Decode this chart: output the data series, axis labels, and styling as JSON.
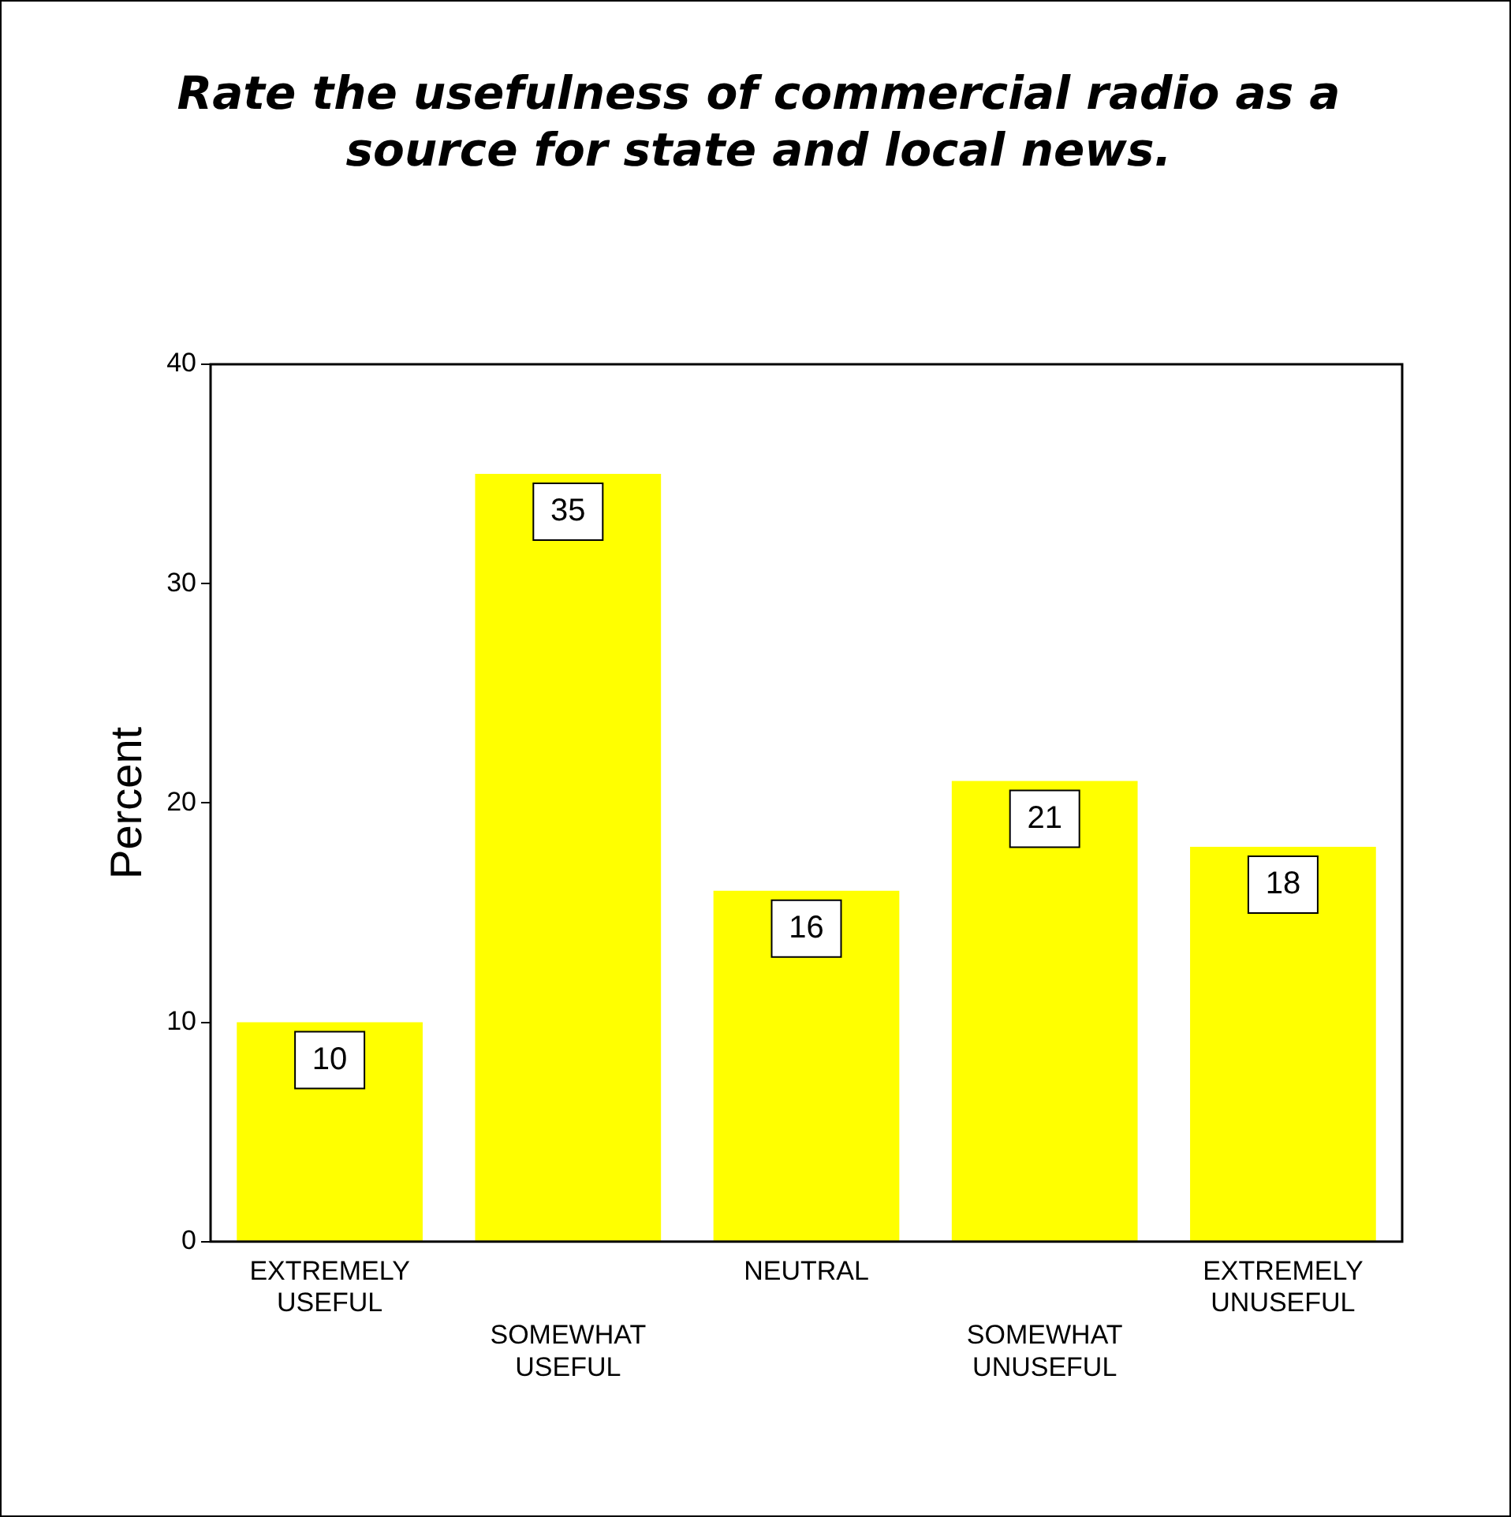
{
  "chart_data": {
    "type": "bar",
    "title": "Rate the usefulness of commercial radio as a source for state and local news.",
    "ylabel": "Percent",
    "categories": [
      "EXTREMELY USEFUL",
      "SOMEWHAT USEFUL",
      "NEUTRAL",
      "SOMEWHAT UNUSEFUL",
      "EXTREMELY UNUSEFUL"
    ],
    "values": [
      10,
      35,
      16,
      21,
      18
    ],
    "color": "#ffff00",
    "ylim": [
      0,
      40
    ],
    "yticks": [
      0,
      10,
      20,
      30,
      40
    ],
    "grid": false,
    "legend": false,
    "data_labels": true
  }
}
